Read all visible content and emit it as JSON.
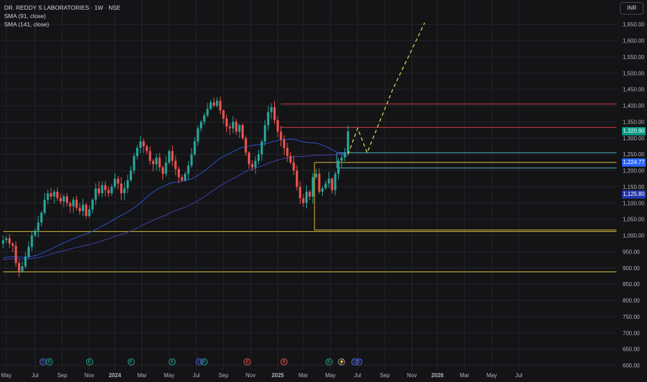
{
  "header": {
    "title": "DR. REDDY S LABORATORIES · 1W · NSE",
    "indicators": [
      "SMA (91, close)",
      "SMA (141, close)"
    ],
    "currency": "INR"
  },
  "colors": {
    "background": "#141416",
    "grid": "#23252b",
    "up": "#26a69a",
    "down": "#ef5350",
    "sma91": "#2e50d6",
    "sma141": "#3f3fb0",
    "yellow": "#d9c23c",
    "red": "#d43d43",
    "cyan": "#4fb3c9",
    "projection": "#e8e35a"
  },
  "price_badges": [
    {
      "label": "1,320.90",
      "value": 1320.9,
      "color": "#089981"
    },
    {
      "label": "1,224.77",
      "value": 1224.77,
      "color": "#2962ff"
    },
    {
      "label": "1,125.80",
      "value": 1125.8,
      "color": "#2234a8"
    }
  ],
  "events": [
    {
      "label": "D",
      "week": 12.5,
      "color": "#4f6bed"
    },
    {
      "label": "E",
      "week": 14.5,
      "color": "#26a69a"
    },
    {
      "label": "E",
      "week": 27.0,
      "color": "#26a69a"
    },
    {
      "label": "E",
      "week": 40.0,
      "color": "#26a69a"
    },
    {
      "label": "E",
      "week": 53.0,
      "color": "#26a69a"
    },
    {
      "label": "D",
      "week": 61.5,
      "color": "#4f6bed"
    },
    {
      "label": "E",
      "week": 63.0,
      "color": "#26a69a"
    },
    {
      "label": "E",
      "week": 76.5,
      "color": "#ef5350"
    },
    {
      "label": "E",
      "week": 88.0,
      "color": "#ef5350"
    },
    {
      "label": "E",
      "week": 102.0,
      "color": "#26a69a"
    },
    {
      "label": "⚡",
      "week": 106.0,
      "color": "#9aa0ab"
    },
    {
      "label": "D",
      "week": 110.0,
      "color": "#4f6bed"
    },
    {
      "label": "E",
      "week": 111.5,
      "color": "#4f6bed"
    }
  ],
  "chart_data": {
    "type": "candlestick",
    "title": "DR. REDDY S LABORATORIES · 1W · NSE",
    "ylim": [
      600,
      1680
    ],
    "y_ticks": [
      "600.00",
      "650.00",
      "700.00",
      "750.00",
      "800.00",
      "850.00",
      "900.00",
      "950.00",
      "1,000.00",
      "1,050.00",
      "1,100.00",
      "1,150.00",
      "1,200.00",
      "1,250.00",
      "1,300.00",
      "1,350.00",
      "1,400.00",
      "1,450.00",
      "1,500.00",
      "1,550.00",
      "1,600.00",
      "1,650.00"
    ],
    "x_ticks": [
      {
        "label": "May",
        "week": 1.0
      },
      {
        "label": "Jul",
        "week": 10.0
      },
      {
        "label": "Sep",
        "week": 18.5
      },
      {
        "label": "Nov",
        "week": 27.0
      },
      {
        "label": "2024",
        "week": 35.0
      },
      {
        "label": "Mar",
        "week": 43.5
      },
      {
        "label": "May",
        "week": 52.0
      },
      {
        "label": "Jul",
        "week": 60.5
      },
      {
        "label": "Sep",
        "week": 69.0
      },
      {
        "label": "Nov",
        "week": 77.5
      },
      {
        "label": "2025",
        "week": 86.0
      },
      {
        "label": "Mar",
        "week": 94.0
      },
      {
        "label": "May",
        "week": 102.5
      },
      {
        "label": "Jul",
        "week": 111.0
      },
      {
        "label": "Sep",
        "week": 119.5
      },
      {
        "label": "Nov",
        "week": 128.0
      },
      {
        "label": "2026",
        "week": 136.0
      },
      {
        "label": "Mar",
        "week": 144.5
      },
      {
        "label": "May",
        "week": 153.0
      },
      {
        "label": "Jul",
        "week": 161.5
      }
    ],
    "candles_close": [
      985,
      992,
      975,
      968,
      915,
      890,
      905,
      935,
      965,
      1000,
      1015,
      1040,
      1070,
      1110,
      1130,
      1120,
      1135,
      1115,
      1105,
      1120,
      1100,
      1090,
      1110,
      1085,
      1075,
      1095,
      1060,
      1080,
      1110,
      1145,
      1130,
      1155,
      1140,
      1130,
      1150,
      1175,
      1160,
      1130,
      1145,
      1170,
      1200,
      1245,
      1270,
      1290,
      1275,
      1260,
      1230,
      1220,
      1240,
      1210,
      1190,
      1225,
      1260,
      1230,
      1205,
      1180,
      1170,
      1190,
      1215,
      1250,
      1290,
      1330,
      1350,
      1370,
      1390,
      1410,
      1400,
      1415,
      1385,
      1360,
      1335,
      1330,
      1350,
      1320,
      1340,
      1300,
      1255,
      1220,
      1210,
      1230,
      1250,
      1290,
      1340,
      1380,
      1395,
      1355,
      1320,
      1295,
      1270,
      1245,
      1225,
      1200,
      1150,
      1115,
      1100,
      1135,
      1120,
      1180,
      1190,
      1135,
      1145,
      1160,
      1175,
      1140,
      1190,
      1230,
      1240,
      1255,
      1320.9
    ],
    "projection": [
      [
        108,
        1250
      ],
      [
        111,
        1330
      ],
      [
        114,
        1255
      ],
      [
        122,
        1450
      ],
      [
        132,
        1655
      ]
    ],
    "sma91_start": 930,
    "sma141_start": 925,
    "levels": [
      {
        "value": 1405,
        "from_week": 87,
        "color": "red"
      },
      {
        "value": 1333,
        "from_week": 87,
        "color": "red"
      },
      {
        "value": 1255,
        "from_week": 104.5,
        "color": "cyan"
      },
      {
        "value": 1208,
        "from_week": 104.5,
        "color": "cyan"
      },
      {
        "value": 1225,
        "from_week": 97.5,
        "color": "yellow"
      },
      {
        "value": 1017,
        "from_week": 97.5,
        "color": "yellow"
      },
      {
        "value": 1012,
        "from_week": 0,
        "color": "yellow"
      },
      {
        "value": 888,
        "from_week": 0,
        "color": "yellow"
      }
    ]
  }
}
